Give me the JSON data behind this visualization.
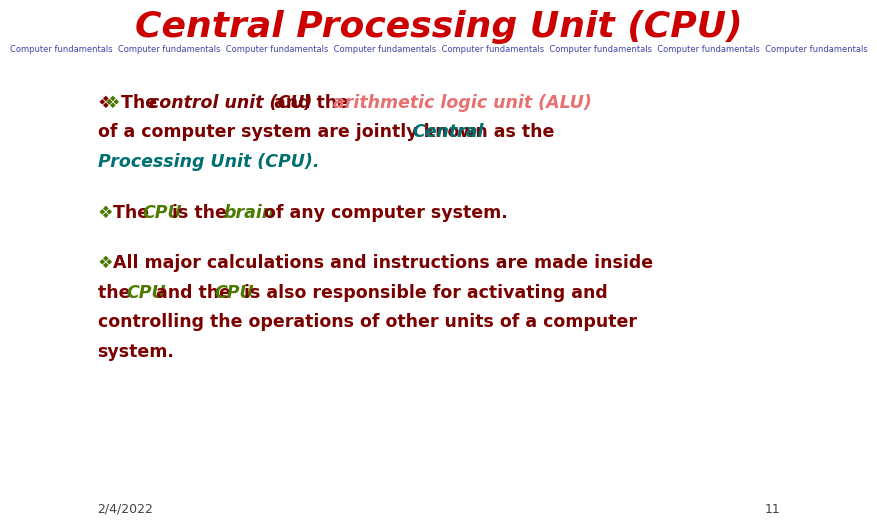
{
  "title": "Central Processing Unit (CPU)",
  "title_color": "#CC0000",
  "title_fontsize": 26,
  "subtitle": "Computer fundamentals  Computer fundamentals  Computer fundamentals  Computer fundamentals  Computer fundamentals  Computer fundamentals  Computer fundamentals  Computer fundamentals",
  "subtitle_color": "#4444AA",
  "subtitle_fontsize": 6,
  "bg_color": "#FFFFFF",
  "date_text": "2/4/2022",
  "page_num": "11",
  "footer_color": "#444444",
  "footer_fontsize": 9,
  "dark_red": "#7B0000",
  "green": "#4C7A00",
  "teal": "#007070",
  "pink": "#E87070",
  "bullet": "❖"
}
